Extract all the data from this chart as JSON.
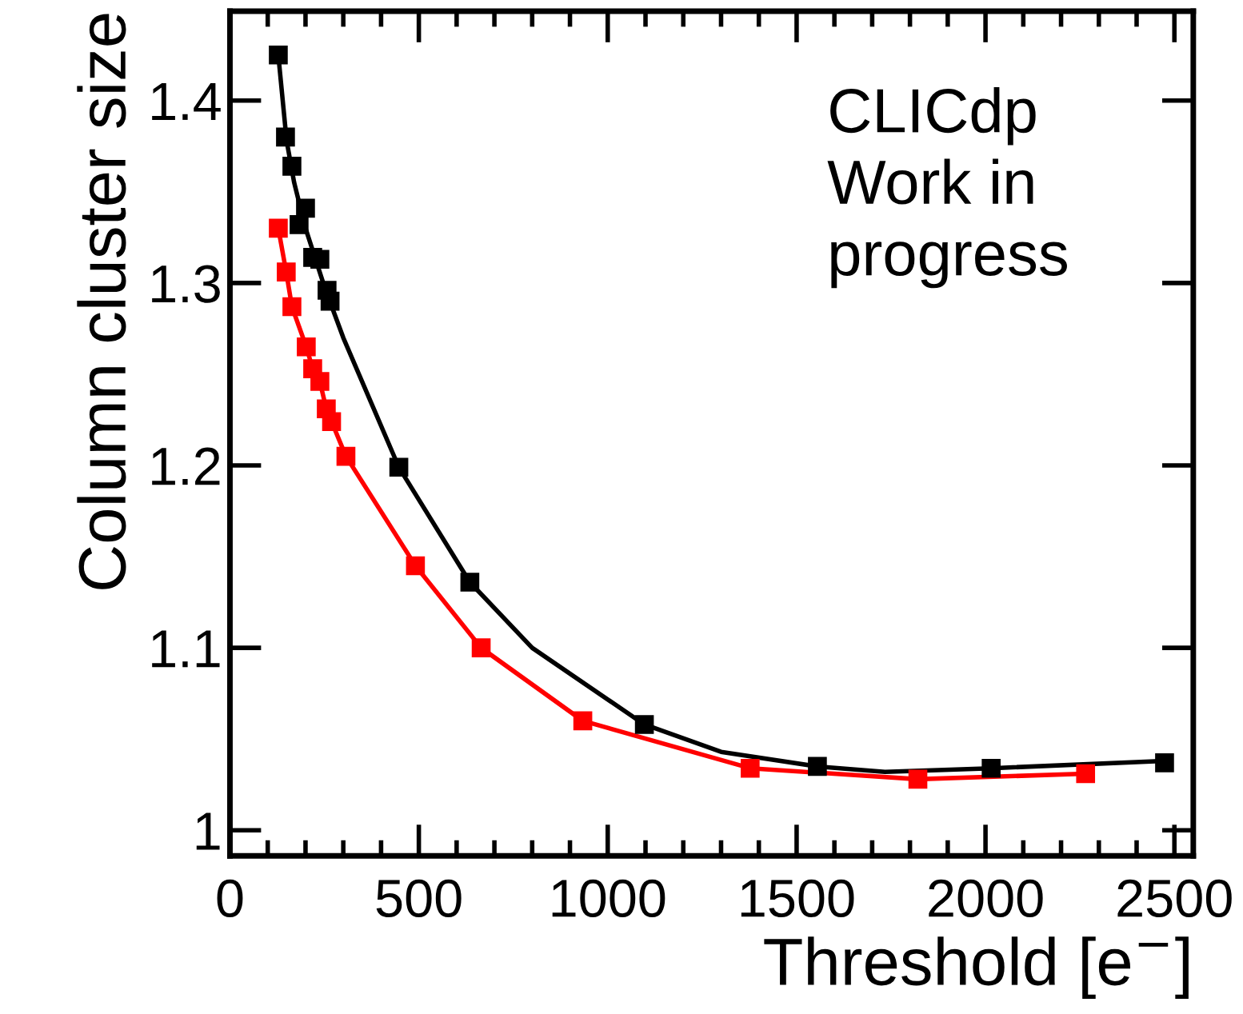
{
  "chart_data": {
    "type": "scatter",
    "xlabel": "Threshold [e$^{−}$]",
    "ylabel": "Column cluster size",
    "xlim": [
      0,
      2550
    ],
    "ylim": [
      0.986,
      1.449
    ],
    "xticks": [
      0,
      500,
      1000,
      1500,
      2000,
      2500
    ],
    "yticks": [
      1,
      1.1,
      1.2,
      1.3,
      1.4
    ],
    "marker": "square",
    "grid": false,
    "annotations": [
      "CLICdp\nWork in\nprogress"
    ],
    "series": [
      {
        "color": "#000000",
        "x": [
          128,
          147,
          164,
          183,
          200,
          219,
          238,
          257,
          265,
          447,
          635,
          1097,
          1555,
          2015,
          2474
        ],
        "values": [
          1.425,
          1.38,
          1.364,
          1.332,
          1.341,
          1.314,
          1.313,
          1.296,
          1.29,
          1.199,
          1.136,
          1.058,
          1.035,
          1.034,
          1.037
        ]
      },
      {
        "type": "line",
        "color": "#000000",
        "marker": "none",
        "x": [
          128,
          150,
          170,
          200,
          250,
          300,
          447,
          635,
          800,
          1097,
          1300,
          1555,
          1734,
          2015,
          2474
        ],
        "values": [
          1.425,
          1.378,
          1.355,
          1.33,
          1.298,
          1.27,
          1.199,
          1.136,
          1.1,
          1.058,
          1.043,
          1.035,
          1.032,
          1.034,
          1.038
        ]
      },
      {
        "type": "line",
        "color": "#ff0000",
        "x": [
          128,
          149,
          164,
          202,
          219,
          238,
          255,
          269,
          307,
          491,
          665,
          934,
          1377,
          1821,
          2265
        ],
        "values": [
          1.33,
          1.306,
          1.287,
          1.265,
          1.253,
          1.246,
          1.231,
          1.224,
          1.205,
          1.145,
          1.1,
          1.06,
          1.034,
          1.028,
          1.031
        ]
      }
    ]
  }
}
